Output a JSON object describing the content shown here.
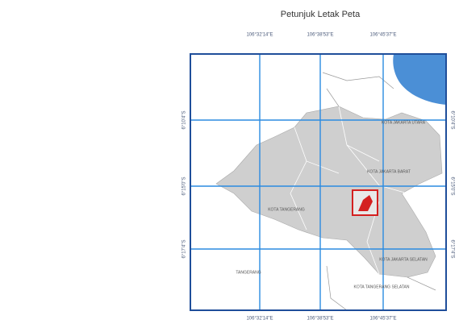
{
  "map": {
    "title": "Petunjuk Letak Peta",
    "longitudes": [
      "106°32'14\"E",
      "106°38'53\"E",
      "106°45'37\"E"
    ],
    "latitudes": [
      "6°10'4\"S",
      "6°15'0\"S",
      "6°17'4\"S"
    ],
    "regions": [
      "KOTA JAKARTA UTARA",
      "KOTA JAKARTA BARAT",
      "KOTA TANGERANG",
      "TANGERANG",
      "KOTA TANGERANG SELATAN",
      "KOTA JAKARTA SELATAN"
    ]
  }
}
